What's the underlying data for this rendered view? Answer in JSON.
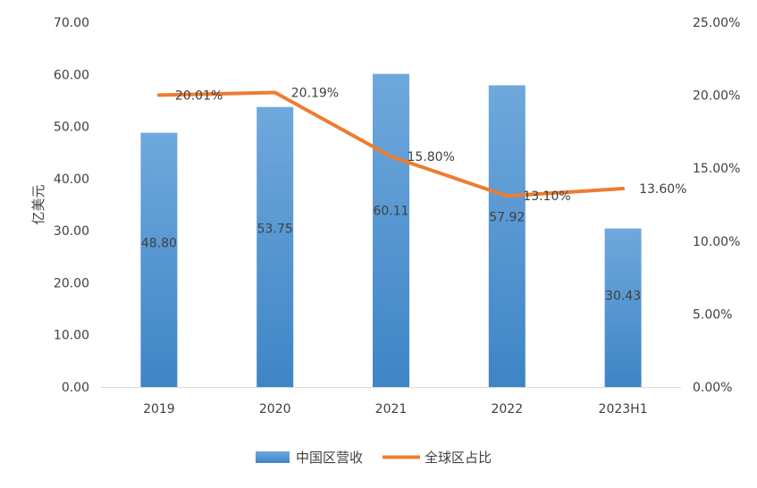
{
  "chart_data": {
    "type": "bar",
    "title": "",
    "categories": [
      "2019",
      "2020",
      "2021",
      "2022",
      "2023H1"
    ],
    "series": [
      {
        "name": "中国区营收",
        "type": "bar",
        "axis": "left",
        "color": "#5b9bd5",
        "values": [
          48.8,
          53.75,
          60.11,
          57.92,
          30.43
        ],
        "labels": [
          "48.80",
          "53.75",
          "60.11",
          "57.92",
          "30.43"
        ]
      },
      {
        "name": "全球区占比",
        "type": "line",
        "axis": "right",
        "color": "#ed7d31",
        "values": [
          20.01,
          20.19,
          15.8,
          13.1,
          13.6
        ],
        "labels": [
          "20.01%",
          "20.19%",
          "15.80%",
          "13.10%",
          "13.60%"
        ]
      }
    ],
    "ylabel": "亿美元",
    "ylim": [
      0,
      70
    ],
    "yticks": [
      "0.00",
      "10.00",
      "20.00",
      "30.00",
      "40.00",
      "50.00",
      "60.00",
      "70.00"
    ],
    "y2lim": [
      0,
      25
    ],
    "y2ticks": [
      "0.00%",
      "5.00%",
      "10.00%",
      "15.00%",
      "20.00%",
      "25.00%"
    ],
    "grid": false,
    "legend_position": "bottom"
  }
}
